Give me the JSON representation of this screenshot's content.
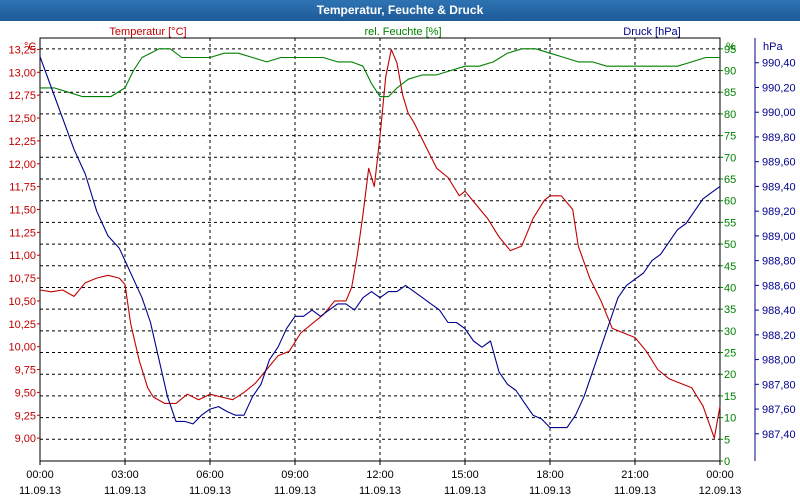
{
  "window": {
    "title": "Temperatur, Feuchte & Druck"
  },
  "chart_data": {
    "type": "line",
    "title": "Temperatur, Feuchte & Druck",
    "x_categories": [
      "00:00",
      "03:00",
      "06:00",
      "09:00",
      "12:00",
      "15:00",
      "18:00",
      "21:00",
      "00:00"
    ],
    "x_dates": [
      "11.09.13",
      "11.09.13",
      "11.09.13",
      "11.09.13",
      "11.09.13",
      "11.09.13",
      "11.09.13",
      "11.09.13",
      "12.09.13"
    ],
    "xlim_hours": [
      0,
      24
    ],
    "axes": {
      "temperature": {
        "label": "Temperatur [°C]",
        "unit": "°C",
        "ylim": [
          8.75,
          13.375
        ],
        "ticks": [
          "13,25",
          "13,00",
          "12,75",
          "12,50",
          "12,25",
          "12,00",
          "11,75",
          "11,50",
          "11,25",
          "11,00",
          "10,75",
          "10,50",
          "10,25",
          "10,00",
          "9,75",
          "9,50",
          "9,25",
          "9,00"
        ],
        "tick_values": [
          13.25,
          13.0,
          12.75,
          12.5,
          12.25,
          12.0,
          11.75,
          11.5,
          11.25,
          11.0,
          10.75,
          10.5,
          10.25,
          10.0,
          9.75,
          9.5,
          9.25,
          9.0
        ],
        "color": "#c00000"
      },
      "humidity": {
        "label": "rel. Feuchte [%]",
        "unit": "%",
        "ylim": [
          0,
          97.5
        ],
        "ticks": [
          "95",
          "90",
          "85",
          "80",
          "75",
          "70",
          "65",
          "60",
          "55",
          "50",
          "45",
          "40",
          "35",
          "30",
          "25",
          "20",
          "15",
          "10",
          "5",
          "0"
        ],
        "tick_values": [
          95,
          90,
          85,
          80,
          75,
          70,
          65,
          60,
          55,
          50,
          45,
          40,
          35,
          30,
          25,
          20,
          15,
          10,
          5,
          0
        ],
        "color": "#008000"
      },
      "pressure": {
        "label": "Druck [hPa]",
        "unit": "hPa",
        "ylim": [
          987.18,
          990.6
        ],
        "ticks": [
          "990,40",
          "990,20",
          "990,00",
          "989,80",
          "989,60",
          "989,40",
          "989,20",
          "989,00",
          "988,80",
          "988,60",
          "988,40",
          "988,20",
          "988,00",
          "987,80",
          "987,60",
          "987,40"
        ],
        "tick_values": [
          990.4,
          990.2,
          990.0,
          989.8,
          989.6,
          989.4,
          989.2,
          989.0,
          988.8,
          988.6,
          988.4,
          988.2,
          988.0,
          987.8,
          987.6,
          987.4
        ],
        "color": "#00008b"
      }
    },
    "series": [
      {
        "name": "Temperatur [°C]",
        "axis": "temperature",
        "color": "#c00000",
        "x": [
          0,
          0.4,
          0.8,
          1.2,
          1.6,
          2.0,
          2.4,
          2.8,
          3.0,
          3.2,
          3.5,
          3.8,
          4.0,
          4.4,
          4.8,
          5.2,
          5.6,
          6.0,
          6.4,
          6.8,
          7.2,
          7.6,
          8.0,
          8.4,
          8.8,
          9.2,
          9.6,
          10.0,
          10.4,
          10.8,
          11.0,
          11.2,
          11.4,
          11.6,
          11.8,
          12.0,
          12.2,
          12.4,
          12.6,
          12.8,
          13.0,
          13.2,
          13.6,
          14.0,
          14.4,
          14.8,
          15.0,
          15.4,
          15.8,
          16.2,
          16.6,
          17.0,
          17.4,
          17.8,
          18.0,
          18.4,
          18.8,
          19.0,
          19.4,
          19.8,
          20.2,
          20.6,
          21.0,
          21.4,
          21.8,
          22.2,
          22.6,
          23.0,
          23.4,
          23.8,
          24.0
        ],
        "y": [
          10.62,
          10.6,
          10.62,
          10.55,
          10.7,
          10.75,
          10.78,
          10.75,
          10.68,
          10.25,
          9.85,
          9.55,
          9.45,
          9.38,
          9.38,
          9.48,
          9.42,
          9.48,
          9.45,
          9.42,
          9.5,
          9.6,
          9.75,
          9.9,
          9.95,
          10.15,
          10.25,
          10.35,
          10.5,
          10.5,
          10.65,
          11.0,
          11.45,
          11.95,
          11.75,
          12.3,
          12.95,
          13.25,
          13.1,
          12.75,
          12.55,
          12.45,
          12.2,
          11.95,
          11.85,
          11.65,
          11.7,
          11.55,
          11.4,
          11.2,
          11.05,
          11.1,
          11.4,
          11.6,
          11.65,
          11.65,
          11.5,
          11.1,
          10.75,
          10.5,
          10.2,
          10.15,
          10.1,
          9.95,
          9.75,
          9.65,
          9.6,
          9.55,
          9.35,
          9.0,
          9.35
        ]
      },
      {
        "name": "rel. Feuchte [%]",
        "axis": "humidity",
        "color": "#008000",
        "x": [
          0,
          0.5,
          1.0,
          1.5,
          2.0,
          2.5,
          3.0,
          3.3,
          3.6,
          3.9,
          4.2,
          4.6,
          5.0,
          5.5,
          6.0,
          6.5,
          7.0,
          7.5,
          8.0,
          8.5,
          9.0,
          9.5,
          10.0,
          10.5,
          11.0,
          11.4,
          11.7,
          12.0,
          12.3,
          12.6,
          13.0,
          13.5,
          14.0,
          14.5,
          15.0,
          15.5,
          16.0,
          16.5,
          17.0,
          17.5,
          18.0,
          18.5,
          19.0,
          19.5,
          20.0,
          20.5,
          21.0,
          21.5,
          22.0,
          22.5,
          23.0,
          23.5,
          24.0
        ],
        "y": [
          86,
          86,
          85,
          84,
          84,
          84,
          86,
          90,
          93,
          94,
          95,
          95,
          93,
          93,
          93,
          94,
          94,
          93,
          92,
          93,
          93,
          93,
          93,
          92,
          92,
          91,
          87,
          84,
          84,
          86,
          88,
          89,
          89,
          90,
          91,
          91,
          92,
          94,
          95,
          95,
          94,
          93,
          92,
          92,
          91,
          91,
          91,
          91,
          91,
          91,
          92,
          93,
          93
        ]
      },
      {
        "name": "Druck [hPa]",
        "axis": "pressure",
        "color": "#00008b",
        "x": [
          0,
          0.4,
          0.8,
          1.2,
          1.6,
          2.0,
          2.4,
          2.8,
          3.0,
          3.3,
          3.6,
          3.9,
          4.2,
          4.5,
          4.8,
          5.1,
          5.4,
          5.7,
          6.0,
          6.3,
          6.6,
          6.9,
          7.2,
          7.5,
          7.8,
          8.1,
          8.4,
          8.7,
          9.0,
          9.3,
          9.6,
          9.9,
          10.2,
          10.5,
          10.8,
          11.1,
          11.4,
          11.7,
          12.0,
          12.3,
          12.6,
          12.9,
          13.2,
          13.5,
          13.8,
          14.1,
          14.4,
          14.7,
          15.0,
          15.3,
          15.6,
          15.9,
          16.2,
          16.5,
          16.8,
          17.1,
          17.4,
          17.7,
          18.0,
          18.3,
          18.6,
          18.9,
          19.2,
          19.5,
          19.8,
          20.1,
          20.4,
          20.7,
          21.0,
          21.3,
          21.6,
          21.9,
          22.2,
          22.5,
          22.8,
          23.1,
          23.4,
          23.7,
          24.0
        ],
        "y": [
          990.45,
          990.2,
          989.95,
          989.7,
          989.5,
          989.2,
          989.0,
          988.9,
          988.8,
          988.65,
          988.5,
          988.3,
          988.0,
          987.7,
          987.5,
          987.5,
          987.48,
          987.55,
          987.6,
          987.62,
          987.58,
          987.55,
          987.55,
          987.7,
          987.8,
          988.0,
          988.1,
          988.25,
          988.35,
          988.35,
          988.4,
          988.35,
          988.4,
          988.45,
          988.45,
          988.4,
          988.5,
          988.55,
          988.5,
          988.55,
          988.55,
          988.6,
          988.55,
          988.5,
          988.45,
          988.4,
          988.3,
          988.3,
          988.25,
          988.15,
          988.1,
          988.15,
          987.9,
          987.8,
          987.75,
          987.65,
          987.55,
          987.52,
          987.45,
          987.45,
          987.45,
          987.55,
          987.7,
          987.9,
          988.1,
          988.3,
          988.5,
          988.6,
          988.65,
          988.7,
          988.8,
          988.85,
          988.95,
          989.05,
          989.1,
          989.2,
          989.3,
          989.35,
          989.4
        ]
      }
    ]
  }
}
